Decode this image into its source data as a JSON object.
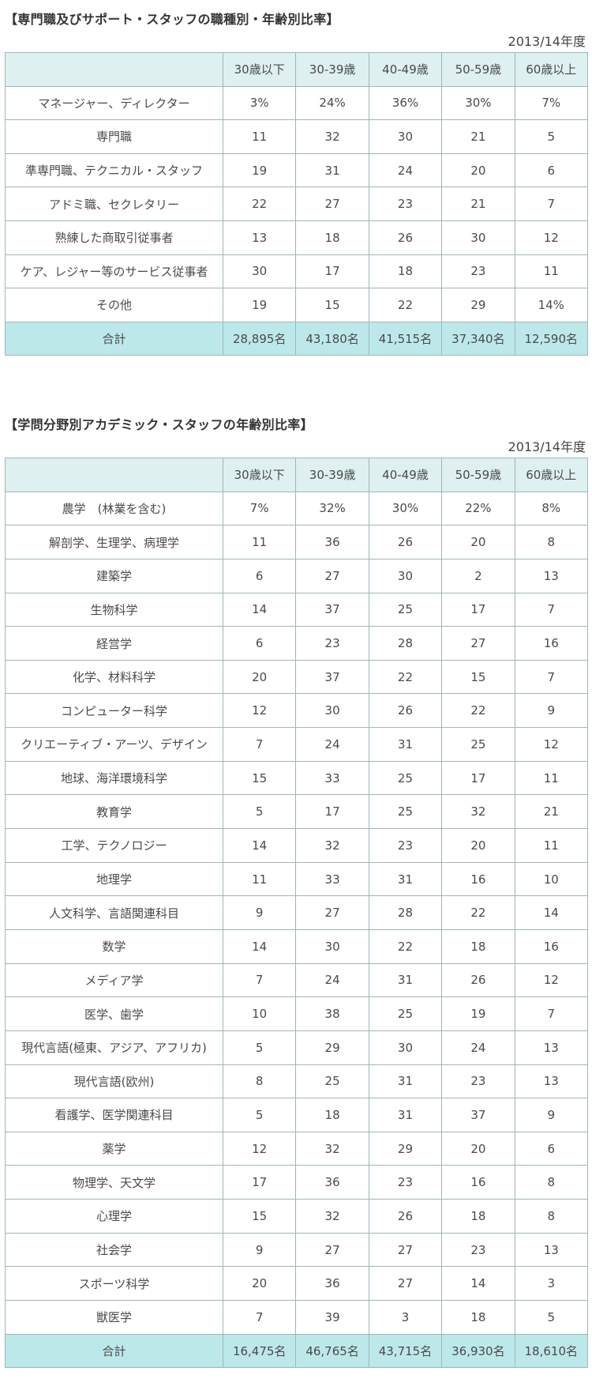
{
  "section1": {
    "title": "【専門職及びサポート・スタッフの職種別・年齢別比率】",
    "year": "2013/14年度",
    "headers": [
      "",
      "30歳以下",
      "30-39歳",
      "40-49歳",
      "50-59歳",
      "60歳以上"
    ],
    "rows": [
      [
        "マネージャー、ディレクター",
        "3%",
        "24%",
        "36%",
        "30%",
        "7%"
      ],
      [
        "専門職",
        "11",
        "32",
        "30",
        "21",
        "5"
      ],
      [
        "準専門職、テクニカル・スタッフ",
        "19",
        "31",
        "24",
        "20",
        "6"
      ],
      [
        "アドミ職、セクレタリー",
        "22",
        "27",
        "23",
        "21",
        "7"
      ],
      [
        "熟練した商取引従事者",
        "13",
        "18",
        "26",
        "30",
        "12"
      ],
      [
        "ケア、レジャー等のサービス従事者",
        "30",
        "17",
        "18",
        "23",
        "11"
      ],
      [
        "その他",
        "19",
        "15",
        "22",
        "29",
        "14%"
      ]
    ],
    "total": [
      "合計",
      "28,895名",
      "43,180名",
      "41,515名",
      "37,340名",
      "12,590名"
    ]
  },
  "section2": {
    "title": "【学問分野別アカデミック・スタッフの年齢別比率】",
    "year": "2013/14年度",
    "headers": [
      "",
      "30歳以下",
      "30-39歳",
      "40-49歳",
      "50-59歳",
      "60歳以上"
    ],
    "rows": [
      [
        "農学　(林業を含む)",
        "7%",
        "32%",
        "30%",
        "22%",
        "8%"
      ],
      [
        "解剖学、生理学、病理学",
        "11",
        "36",
        "26",
        "20",
        "8"
      ],
      [
        "建築学",
        "6",
        "27",
        "30",
        "2",
        "13"
      ],
      [
        "生物科学",
        "14",
        "37",
        "25",
        "17",
        "7"
      ],
      [
        "経営学",
        "6",
        "23",
        "28",
        "27",
        "16"
      ],
      [
        "化学、材料科学",
        "20",
        "37",
        "22",
        "15",
        "7"
      ],
      [
        "コンピューター科学",
        "12",
        "30",
        "26",
        "22",
        "9"
      ],
      [
        "クリエーティブ・アーツ、デザイン",
        "7",
        "24",
        "31",
        "25",
        "12"
      ],
      [
        "地球、海洋環境科学",
        "15",
        "33",
        "25",
        "17",
        "11"
      ],
      [
        "教育学",
        "5",
        "17",
        "25",
        "32",
        "21"
      ],
      [
        "工学、テクノロジー",
        "14",
        "32",
        "23",
        "20",
        "11"
      ],
      [
        "地理学",
        "11",
        "33",
        "31",
        "16",
        "10"
      ],
      [
        "人文科学、言語関連科目",
        "9",
        "27",
        "28",
        "22",
        "14"
      ],
      [
        "数学",
        "14",
        "30",
        "22",
        "18",
        "16"
      ],
      [
        "メディア学",
        "7",
        "24",
        "31",
        "26",
        "12"
      ],
      [
        "医学、歯学",
        "10",
        "38",
        "25",
        "19",
        "7"
      ],
      [
        "現代言語(極東、アジア、アフリカ)",
        "5",
        "29",
        "30",
        "24",
        "13"
      ],
      [
        "現代言語(欧州)",
        "8",
        "25",
        "31",
        "23",
        "13"
      ],
      [
        "看護学、医学関連科目",
        "5",
        "18",
        "31",
        "37",
        "9"
      ],
      [
        "薬学",
        "12",
        "32",
        "29",
        "20",
        "6"
      ],
      [
        "物理学、天文学",
        "17",
        "36",
        "23",
        "16",
        "8"
      ],
      [
        "心理学",
        "15",
        "32",
        "26",
        "18",
        "8"
      ],
      [
        "社会学",
        "9",
        "27",
        "27",
        "23",
        "13"
      ],
      [
        "スポーツ科学",
        "20",
        "36",
        "27",
        "14",
        "3"
      ],
      [
        "獣医学",
        "7",
        "39",
        "3",
        "18",
        "5"
      ]
    ],
    "total": [
      "合計",
      "16,475名",
      "46,765名",
      "43,715名",
      "36,930名",
      "18,610名"
    ]
  }
}
